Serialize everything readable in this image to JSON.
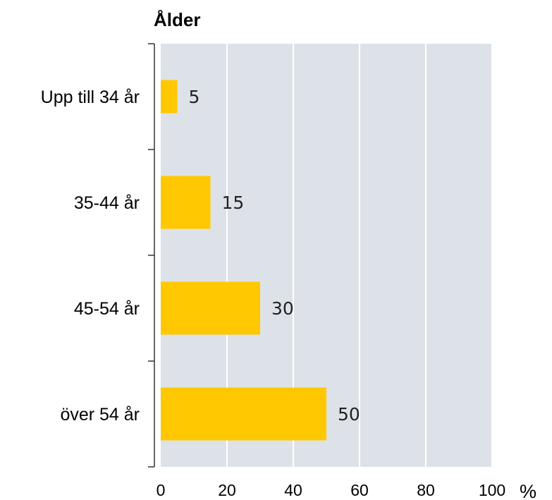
{
  "colors": {
    "plot_background": "#dde2e8",
    "bar": "#ffc800",
    "gridline": "#ffffff",
    "axis": "#333333"
  },
  "chart_data": {
    "type": "bar",
    "orientation": "horizontal",
    "title": "Ålder",
    "categories": [
      "Upp till 34 år",
      "35-44 år",
      "45-54 år",
      "över 54 år"
    ],
    "values": [
      5,
      15,
      30,
      50
    ],
    "data_labels": [
      "5",
      "15",
      "30",
      "50"
    ],
    "x_ticks": [
      "0",
      "20",
      "40",
      "60",
      "80",
      "100"
    ],
    "unit_label": "%",
    "xlim": [
      0,
      100
    ],
    "grid": true,
    "legend": "none"
  }
}
